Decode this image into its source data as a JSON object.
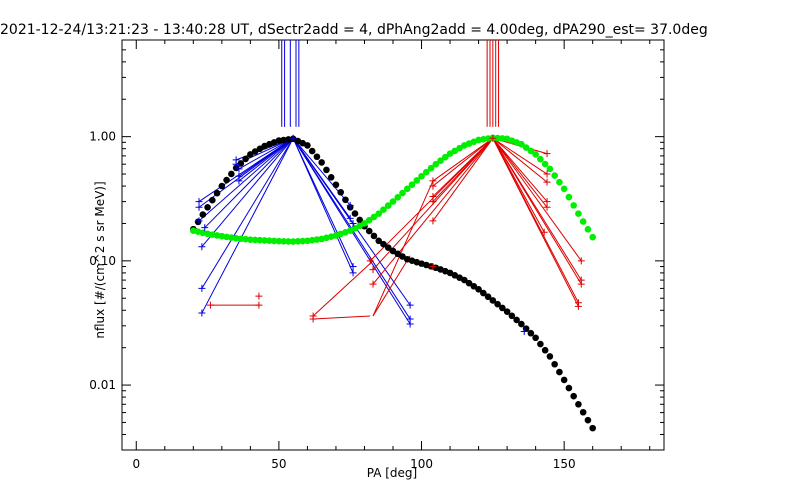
{
  "chart_data": {
    "type": "scatter",
    "title": "2021-12-24/13:21:23 - 13:40:28 UT, dSectr2add = 4, dPhAng2add = 4.00deg, dPA290_est=  37.0deg",
    "xlabel": "PA [deg]",
    "ylabel": "nflux [#/(cm^2 s sr MeV)]",
    "xlim": [
      -5,
      185
    ],
    "ylim": [
      0.003,
      6.0
    ],
    "yscale": "log",
    "x_ticks": [
      0,
      50,
      100,
      150
    ],
    "x_tick_labels": [
      "0",
      "50",
      "100",
      "150"
    ],
    "y_ticks": [
      0.01,
      0.1,
      1.0
    ],
    "y_tick_labels": [
      "0.01",
      "0.10",
      "1.00"
    ],
    "grid": false,
    "colors": {
      "blue": "#0000dd",
      "red": "#dd0000",
      "green": "#00ee00",
      "black": "#000000"
    },
    "vertical_markers": {
      "blue_x": [
        51,
        52,
        54,
        56,
        57
      ],
      "red_x": [
        123,
        124,
        125,
        126,
        127
      ],
      "y_from": 1.2,
      "y_to": 6.0
    },
    "fit_curves": [
      {
        "color": "black",
        "x": [
          20,
          25,
          30,
          35,
          40,
          45,
          50,
          55,
          60,
          65,
          70,
          75,
          80,
          85,
          90,
          95,
          100,
          105,
          110,
          115,
          120,
          125,
          130,
          135,
          140,
          145,
          150,
          155,
          160
        ],
        "y": [
          0.18,
          0.27,
          0.4,
          0.56,
          0.72,
          0.84,
          0.93,
          0.96,
          0.85,
          0.62,
          0.41,
          0.27,
          0.19,
          0.145,
          0.12,
          0.103,
          0.095,
          0.088,
          0.08,
          0.07,
          0.059,
          0.048,
          0.039,
          0.031,
          0.024,
          0.017,
          0.011,
          0.007,
          0.0045
        ]
      },
      {
        "color": "green",
        "x": [
          20,
          25,
          30,
          35,
          40,
          45,
          50,
          55,
          60,
          65,
          70,
          75,
          80,
          85,
          90,
          95,
          100,
          105,
          110,
          115,
          120,
          125,
          130,
          135,
          140,
          145,
          150,
          155,
          160
        ],
        "y": [
          0.175,
          0.165,
          0.158,
          0.152,
          0.148,
          0.146,
          0.144,
          0.143,
          0.145,
          0.15,
          0.16,
          0.175,
          0.2,
          0.24,
          0.3,
          0.38,
          0.48,
          0.6,
          0.73,
          0.85,
          0.94,
          0.98,
          0.96,
          0.87,
          0.72,
          0.55,
          0.38,
          0.24,
          0.155
        ]
      }
    ],
    "series": [
      {
        "color": "blue",
        "apex": [
          55,
          0.97
        ],
        "points": [
          [
            22,
            0.3
          ],
          [
            22,
            0.27
          ],
          [
            22,
            0.21
          ],
          [
            23,
            0.13
          ],
          [
            23,
            0.06
          ],
          [
            23,
            0.038
          ],
          [
            24,
            0.185
          ],
          [
            35,
            0.65
          ],
          [
            35,
            0.6
          ],
          [
            36,
            0.55
          ],
          [
            36,
            0.48
          ],
          [
            36,
            0.44
          ],
          [
            75,
            0.28
          ],
          [
            75,
            0.22
          ],
          [
            76,
            0.2
          ],
          [
            76,
            0.09
          ],
          [
            76,
            0.08
          ],
          [
            96,
            0.044
          ],
          [
            96,
            0.034
          ],
          [
            96,
            0.031
          ]
        ]
      },
      {
        "color": "red",
        "apex": [
          125,
          0.97
        ],
        "points": [
          [
            82,
            0.1
          ],
          [
            83,
            0.085
          ],
          [
            83,
            0.065
          ],
          [
            104,
            0.44
          ],
          [
            104,
            0.4
          ],
          [
            104,
            0.33
          ],
          [
            104,
            0.3
          ],
          [
            104,
            0.21
          ],
          [
            144,
            0.73
          ],
          [
            144,
            0.5
          ],
          [
            144,
            0.43
          ],
          [
            144,
            0.3
          ],
          [
            144,
            0.27
          ],
          [
            143,
            0.17
          ],
          [
            156,
            0.1
          ],
          [
            156,
            0.07
          ],
          [
            156,
            0.065
          ],
          [
            155,
            0.046
          ],
          [
            155,
            0.043
          ]
        ]
      }
    ],
    "extra_segments": [
      {
        "color": "red",
        "x": [
          26,
          43
        ],
        "y": [
          0.044,
          0.044
        ]
      },
      {
        "color": "red",
        "x": [
          62,
          82
        ],
        "y": [
          0.034,
          0.036
        ]
      },
      {
        "color": "red",
        "x": [
          62,
          83
        ],
        "y": [
          0.036,
          0.1
        ]
      },
      {
        "color": "red",
        "x": [
          83,
          96
        ],
        "y": [
          0.036,
          0.11
        ]
      },
      {
        "color": "red",
        "x": [
          83,
          104
        ],
        "y": [
          0.036,
          0.44
        ]
      }
    ],
    "extra_points": [
      {
        "color": "red",
        "x": 43,
        "y": 0.052
      },
      {
        "color": "red",
        "x": 43,
        "y": 0.044
      },
      {
        "color": "red",
        "x": 26,
        "y": 0.044
      },
      {
        "color": "red",
        "x": 62,
        "y": 0.034
      },
      {
        "color": "red",
        "x": 62,
        "y": 0.036
      },
      {
        "color": "red",
        "x": 104,
        "y": 0.09
      },
      {
        "color": "blue",
        "x": 136,
        "y": 0.027
      }
    ]
  }
}
